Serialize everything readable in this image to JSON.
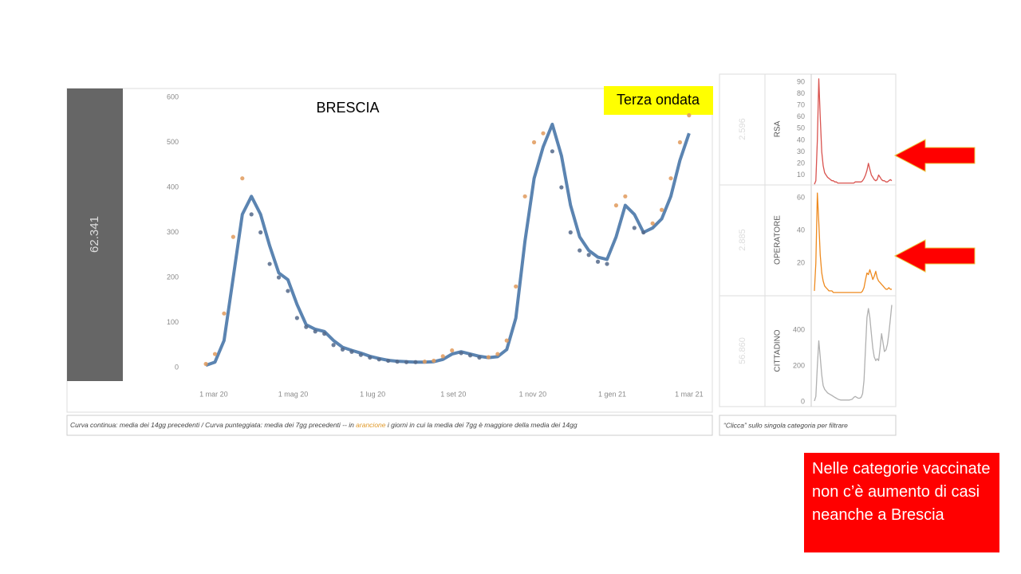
{
  "chart_data": [
    {
      "type": "line",
      "title": "BRESCIA",
      "total": "62.341",
      "annotation": "Terza ondata",
      "x": [
        "2020-02-24",
        "2020-03-02",
        "2020-03-09",
        "2020-03-16",
        "2020-03-23",
        "2020-03-30",
        "2020-04-06",
        "2020-04-13",
        "2020-04-20",
        "2020-04-27",
        "2020-05-04",
        "2020-05-11",
        "2020-05-18",
        "2020-05-25",
        "2020-06-01",
        "2020-06-08",
        "2020-06-15",
        "2020-06-22",
        "2020-06-29",
        "2020-07-06",
        "2020-07-13",
        "2020-07-20",
        "2020-07-27",
        "2020-08-03",
        "2020-08-10",
        "2020-08-17",
        "2020-08-24",
        "2020-08-31",
        "2020-09-07",
        "2020-09-14",
        "2020-09-21",
        "2020-09-28",
        "2020-10-05",
        "2020-10-12",
        "2020-10-19",
        "2020-10-26",
        "2020-11-02",
        "2020-11-09",
        "2020-11-16",
        "2020-11-23",
        "2020-11-30",
        "2020-12-07",
        "2020-12-14",
        "2020-12-21",
        "2020-12-28",
        "2021-01-04",
        "2021-01-11",
        "2021-01-18",
        "2021-01-25",
        "2021-02-01",
        "2021-02-08",
        "2021-02-15",
        "2021-02-22",
        "2021-03-01"
      ],
      "values": [
        5,
        12,
        60,
        200,
        340,
        380,
        340,
        270,
        210,
        195,
        140,
        95,
        85,
        80,
        60,
        45,
        38,
        32,
        25,
        20,
        16,
        14,
        13,
        12,
        12,
        13,
        18,
        30,
        35,
        30,
        25,
        22,
        24,
        40,
        110,
        280,
        420,
        490,
        540,
        470,
        360,
        290,
        260,
        245,
        240,
        290,
        360,
        340,
        300,
        310,
        330,
        380,
        460,
        520
      ],
      "color": "#5b84b1",
      "dots": {
        "values": [
          8,
          30,
          120,
          290,
          420,
          340,
          300,
          230,
          200,
          170,
          110,
          90,
          80,
          75,
          50,
          40,
          35,
          28,
          22,
          18,
          15,
          13,
          12,
          12,
          13,
          15,
          25,
          38,
          32,
          27,
          22,
          23,
          30,
          60,
          180,
          380,
          500,
          520,
          480,
          400,
          300,
          260,
          250,
          235,
          230,
          360,
          380,
          310,
          300,
          320,
          350,
          420,
          500,
          560
        ],
        "colors": {
          "above": "#e09a5c",
          "below": "#53698a"
        }
      },
      "xlim": [
        "2019-12-29",
        "2021-03-17"
      ],
      "xticks": [
        {
          "value": "2020-03-01",
          "label": "1 mar 20"
        },
        {
          "value": "2020-05-01",
          "label": "1 mag 20"
        },
        {
          "value": "2020-07-01",
          "label": "1 lug 20"
        },
        {
          "value": "2020-09-01",
          "label": "1 set 20"
        },
        {
          "value": "2020-11-01",
          "label": "1 nov 20"
        },
        {
          "value": "2021-01-01",
          "label": "1 gen 21"
        },
        {
          "value": "2021-03-01",
          "label": "1 mar 21"
        }
      ],
      "ylim": [
        0,
        600
      ],
      "yticks": [
        0,
        100,
        200,
        300,
        400,
        500,
        600
      ],
      "caption": [
        "Curva continua: media dei 14gg precedenti / Curva punteggiata: media dei 7gg precedenti -- in ",
        "arancione",
        " i giorni in cui la media dei 7gg è maggiore della media dei 14gg"
      ]
    },
    {
      "type": "line",
      "category": "RSA",
      "total": "2.596",
      "color": "#d9534f",
      "values": [
        2,
        5,
        40,
        93,
        60,
        30,
        18,
        12,
        10,
        8,
        7,
        6,
        5,
        5,
        4,
        4,
        3,
        3,
        3,
        3,
        3,
        3,
        3,
        3,
        3,
        3,
        3,
        3,
        4,
        4,
        4,
        4,
        4,
        5,
        7,
        10,
        14,
        20,
        15,
        10,
        8,
        6,
        5,
        6,
        10,
        8,
        6,
        5,
        5,
        4,
        4,
        5,
        6,
        5
      ],
      "ylim": [
        0,
        95
      ],
      "yticks": [
        10,
        20,
        30,
        40,
        50,
        60,
        70,
        80,
        90
      ]
    },
    {
      "type": "line",
      "category": "OPERATORE",
      "total": "2.885",
      "color": "#ee8a1f",
      "values": [
        3,
        20,
        63,
        45,
        25,
        14,
        9,
        6,
        5,
        4,
        3,
        3,
        3,
        2,
        2,
        2,
        2,
        2,
        2,
        2,
        2,
        2,
        2,
        2,
        2,
        2,
        2,
        2,
        2,
        2,
        2,
        2,
        2,
        3,
        5,
        10,
        14,
        13,
        16,
        13,
        10,
        12,
        15,
        11,
        9,
        8,
        7,
        6,
        5,
        4,
        4,
        5,
        4,
        4
      ],
      "ylim": [
        0,
        68
      ],
      "yticks": [
        20,
        40,
        60
      ]
    },
    {
      "type": "line",
      "category": "CITTADINO",
      "total": "56.860",
      "color": "#b0b0b0",
      "values": [
        5,
        30,
        200,
        340,
        250,
        150,
        90,
        70,
        60,
        50,
        45,
        40,
        35,
        30,
        25,
        20,
        15,
        12,
        10,
        10,
        10,
        10,
        10,
        10,
        10,
        12,
        15,
        25,
        30,
        25,
        20,
        20,
        25,
        45,
        120,
        300,
        470,
        520,
        470,
        380,
        300,
        250,
        230,
        240,
        230,
        300,
        380,
        330,
        280,
        290,
        320,
        380,
        460,
        540
      ],
      "ylim": [
        0,
        600
      ],
      "yticks": [
        0,
        200,
        400
      ]
    }
  ],
  "right_caption": "“Clicca” sullo singola categoria per filtrare",
  "note": "Nelle categorie vaccinate non c’è aumento di casi neanche a Brescia"
}
